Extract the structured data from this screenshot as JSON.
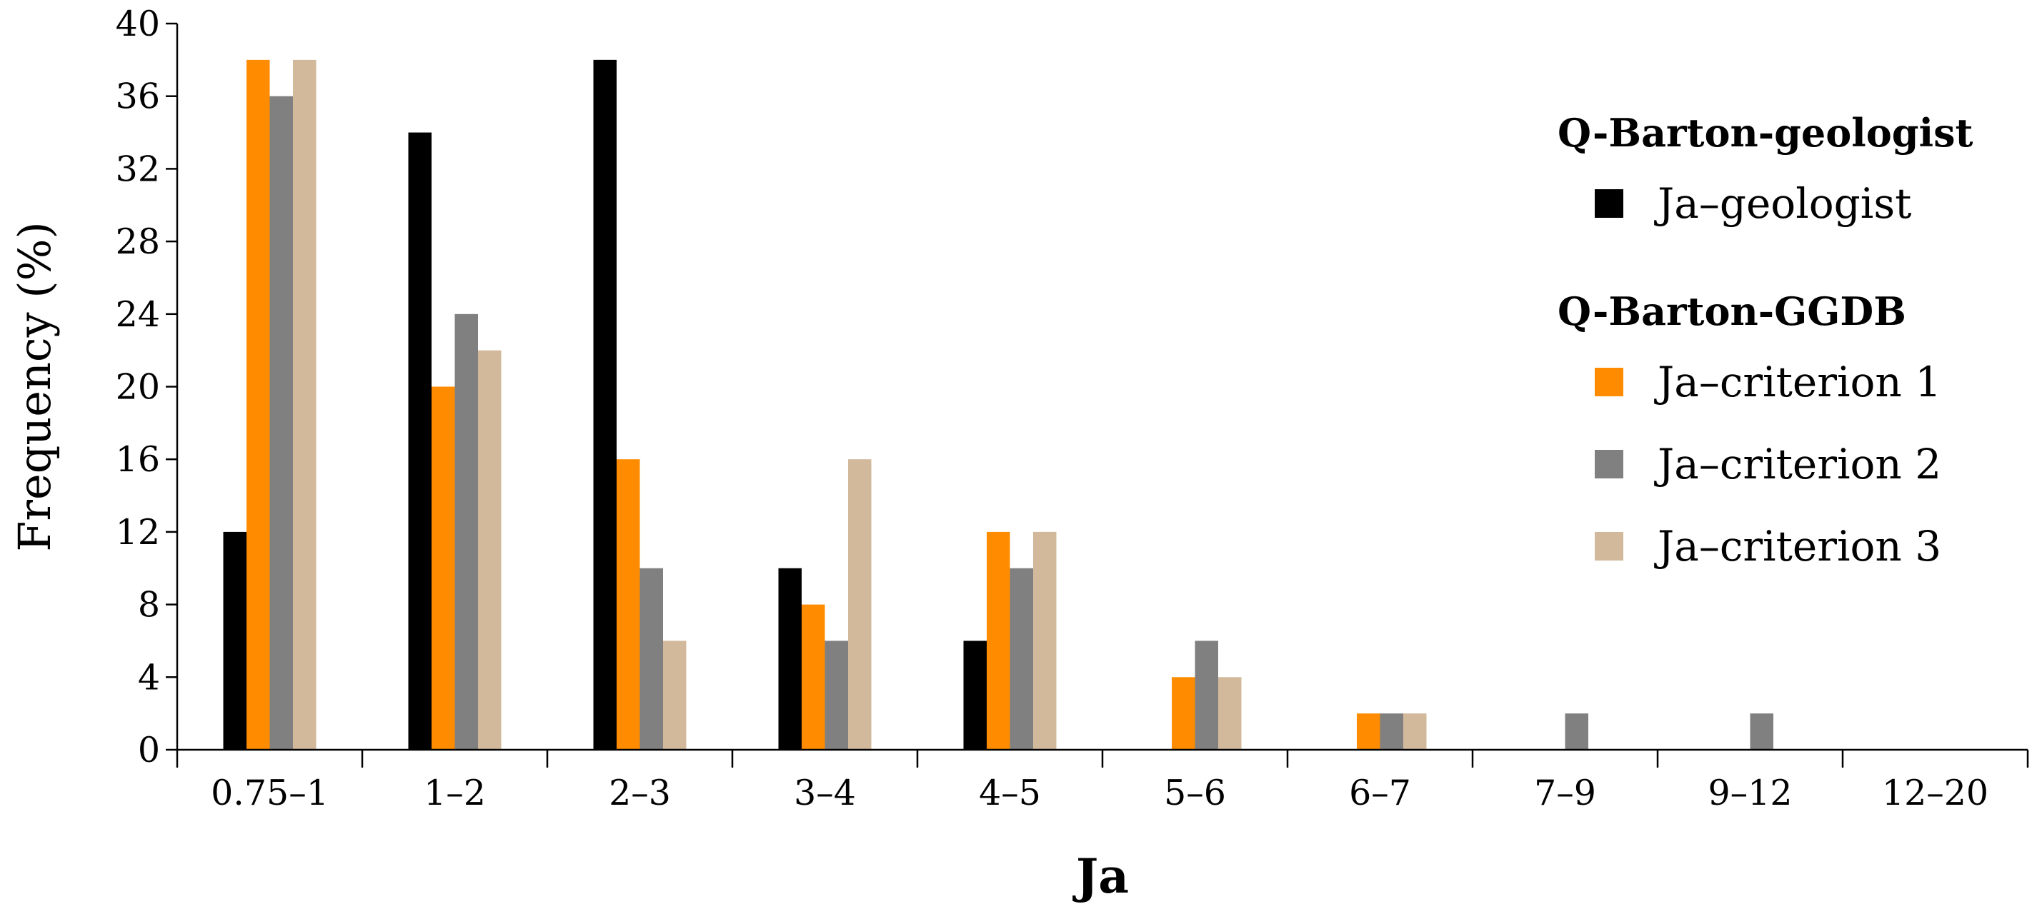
{
  "chart_data": {
    "type": "bar",
    "xlabel": "Ja",
    "ylabel": "Frequency (%)",
    "ylim": [
      0,
      40
    ],
    "yticks": [
      "0",
      "4",
      "8",
      "12",
      "16",
      "20",
      "24",
      "28",
      "32",
      "36",
      "40"
    ],
    "grid": false,
    "legend_position": "right",
    "categories": [
      "0.75–1",
      "1–2",
      "2–3",
      "3–4",
      "4–5",
      "5–6",
      "6–7",
      "7–9",
      "9–12",
      "12–20"
    ],
    "series": [
      {
        "name": "Ja–geologist",
        "color": "#000000",
        "values": [
          12,
          34,
          38,
          10,
          6,
          0,
          0,
          0,
          0,
          0
        ]
      },
      {
        "name": "Ja–criterion 1",
        "color": "#ff8c00",
        "values": [
          38,
          20,
          16,
          8,
          12,
          4,
          2,
          0,
          0,
          0
        ]
      },
      {
        "name": "Ja–criterion 2",
        "color": "#808080",
        "values": [
          36,
          24,
          10,
          6,
          10,
          6,
          2,
          2,
          2,
          0
        ]
      },
      {
        "name": "Ja–criterion 3",
        "color": "#d2b99b",
        "values": [
          38,
          22,
          6,
          16,
          12,
          4,
          2,
          0,
          0,
          0
        ]
      }
    ],
    "legend_groups": [
      {
        "title": "Q-Barton-geologist",
        "series_indices": [
          0
        ]
      },
      {
        "title": "Q-Barton-GGDB",
        "series_indices": [
          1,
          2,
          3
        ]
      }
    ]
  }
}
